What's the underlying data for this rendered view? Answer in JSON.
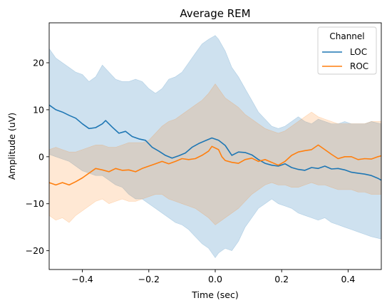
{
  "chart_data": {
    "type": "line",
    "title": "Average REM",
    "xlabel": "Time (sec)",
    "ylabel": "Amplitude (uV)",
    "xlim": [
      -0.5,
      0.5
    ],
    "ylim": [
      -24,
      28.5
    ],
    "x_ticks": [
      -0.4,
      -0.2,
      0.0,
      0.2,
      0.4
    ],
    "x_tick_labels": [
      "−0.4",
      "−0.2",
      "0.0",
      "0.2",
      "0.4"
    ],
    "y_ticks": [
      -20,
      -10,
      0,
      10,
      20
    ],
    "y_tick_labels": [
      "−20",
      "−10",
      "0",
      "10",
      "20"
    ],
    "grid": false,
    "legend": {
      "title": "Channel",
      "placement": "top-right"
    },
    "series": [
      {
        "name": "LOC",
        "color": "#1f77b4",
        "band_opacity": 0.22,
        "points": [
          [
            -0.5,
            11.0
          ],
          [
            -0.48,
            10.0
          ],
          [
            -0.46,
            9.5
          ],
          [
            -0.44,
            8.8
          ],
          [
            -0.42,
            8.2
          ],
          [
            -0.4,
            7.0
          ],
          [
            -0.38,
            6.0
          ],
          [
            -0.36,
            6.2
          ],
          [
            -0.34,
            7.0
          ],
          [
            -0.33,
            7.7
          ],
          [
            -0.31,
            6.3
          ],
          [
            -0.29,
            5.0
          ],
          [
            -0.27,
            5.4
          ],
          [
            -0.25,
            4.3
          ],
          [
            -0.23,
            3.8
          ],
          [
            -0.21,
            3.5
          ],
          [
            -0.19,
            2.0
          ],
          [
            -0.17,
            1.2
          ],
          [
            -0.15,
            0.3
          ],
          [
            -0.13,
            -0.3
          ],
          [
            -0.11,
            0.2
          ],
          [
            -0.09,
            0.8
          ],
          [
            -0.07,
            2.0
          ],
          [
            -0.05,
            2.8
          ],
          [
            -0.03,
            3.4
          ],
          [
            -0.01,
            4.0
          ],
          [
            0.01,
            3.5
          ],
          [
            0.03,
            2.4
          ],
          [
            0.05,
            0.3
          ],
          [
            0.07,
            1.0
          ],
          [
            0.09,
            0.9
          ],
          [
            0.11,
            0.4
          ],
          [
            0.13,
            -0.6
          ],
          [
            0.15,
            -1.4
          ],
          [
            0.17,
            -1.8
          ],
          [
            0.19,
            -2.0
          ],
          [
            0.21,
            -1.5
          ],
          [
            0.23,
            -2.3
          ],
          [
            0.25,
            -2.7
          ],
          [
            0.27,
            -2.9
          ],
          [
            0.29,
            -2.3
          ],
          [
            0.31,
            -2.5
          ],
          [
            0.33,
            -2.0
          ],
          [
            0.35,
            -2.6
          ],
          [
            0.37,
            -2.5
          ],
          [
            0.39,
            -2.8
          ],
          [
            0.41,
            -3.3
          ],
          [
            0.43,
            -3.5
          ],
          [
            0.45,
            -3.7
          ],
          [
            0.47,
            -4.0
          ],
          [
            0.49,
            -4.6
          ],
          [
            0.5,
            -5.0
          ]
        ],
        "band_upper": [
          [
            -0.5,
            23.0
          ],
          [
            -0.48,
            21.0
          ],
          [
            -0.46,
            20.0
          ],
          [
            -0.44,
            19.0
          ],
          [
            -0.42,
            18.0
          ],
          [
            -0.4,
            17.5
          ],
          [
            -0.38,
            16.0
          ],
          [
            -0.36,
            17.0
          ],
          [
            -0.34,
            19.5
          ],
          [
            -0.32,
            18.0
          ],
          [
            -0.3,
            16.5
          ],
          [
            -0.28,
            16.0
          ],
          [
            -0.26,
            16.0
          ],
          [
            -0.24,
            16.5
          ],
          [
            -0.22,
            16.0
          ],
          [
            -0.2,
            14.5
          ],
          [
            -0.18,
            13.5
          ],
          [
            -0.16,
            14.5
          ],
          [
            -0.14,
            16.5
          ],
          [
            -0.12,
            17.0
          ],
          [
            -0.1,
            18.0
          ],
          [
            -0.08,
            20.0
          ],
          [
            -0.06,
            22.0
          ],
          [
            -0.04,
            24.0
          ],
          [
            -0.02,
            25.0
          ],
          [
            0.0,
            25.8
          ],
          [
            0.01,
            25.0
          ],
          [
            0.03,
            22.5
          ],
          [
            0.05,
            19.0
          ],
          [
            0.07,
            17.0
          ],
          [
            0.09,
            14.5
          ],
          [
            0.11,
            12.0
          ],
          [
            0.13,
            9.5
          ],
          [
            0.15,
            8.0
          ],
          [
            0.17,
            6.5
          ],
          [
            0.19,
            6.0
          ],
          [
            0.21,
            6.5
          ],
          [
            0.23,
            7.5
          ],
          [
            0.25,
            8.5
          ],
          [
            0.27,
            7.5
          ],
          [
            0.29,
            7.0
          ],
          [
            0.31,
            8.0
          ],
          [
            0.33,
            7.5
          ],
          [
            0.35,
            7.0
          ],
          [
            0.37,
            7.0
          ],
          [
            0.39,
            7.5
          ],
          [
            0.41,
            7.0
          ],
          [
            0.43,
            7.0
          ],
          [
            0.45,
            7.0
          ],
          [
            0.47,
            7.5
          ],
          [
            0.5,
            7.0
          ]
        ],
        "band_lower": [
          [
            -0.5,
            0.5
          ],
          [
            -0.48,
            0.0
          ],
          [
            -0.46,
            -0.5
          ],
          [
            -0.44,
            -1.0
          ],
          [
            -0.42,
            -2.0
          ],
          [
            -0.4,
            -3.0
          ],
          [
            -0.38,
            -3.5
          ],
          [
            -0.36,
            -4.0
          ],
          [
            -0.34,
            -4.0
          ],
          [
            -0.32,
            -5.0
          ],
          [
            -0.3,
            -6.0
          ],
          [
            -0.28,
            -6.5
          ],
          [
            -0.26,
            -8.0
          ],
          [
            -0.24,
            -9.0
          ],
          [
            -0.22,
            -9.0
          ],
          [
            -0.2,
            -10.0
          ],
          [
            -0.18,
            -11.0
          ],
          [
            -0.16,
            -12.0
          ],
          [
            -0.14,
            -13.0
          ],
          [
            -0.12,
            -14.0
          ],
          [
            -0.1,
            -14.5
          ],
          [
            -0.08,
            -15.5
          ],
          [
            -0.06,
            -17.0
          ],
          [
            -0.04,
            -18.5
          ],
          [
            -0.02,
            -19.5
          ],
          [
            0.0,
            -21.5
          ],
          [
            0.01,
            -20.5
          ],
          [
            0.03,
            -19.5
          ],
          [
            0.05,
            -20.0
          ],
          [
            0.07,
            -18.0
          ],
          [
            0.09,
            -15.0
          ],
          [
            0.11,
            -13.0
          ],
          [
            0.13,
            -11.0
          ],
          [
            0.15,
            -10.0
          ],
          [
            0.17,
            -9.0
          ],
          [
            0.19,
            -10.0
          ],
          [
            0.21,
            -10.5
          ],
          [
            0.23,
            -11.0
          ],
          [
            0.25,
            -12.0
          ],
          [
            0.27,
            -12.5
          ],
          [
            0.29,
            -13.0
          ],
          [
            0.31,
            -13.5
          ],
          [
            0.33,
            -13.0
          ],
          [
            0.35,
            -14.0
          ],
          [
            0.37,
            -14.5
          ],
          [
            0.39,
            -15.0
          ],
          [
            0.41,
            -15.5
          ],
          [
            0.43,
            -16.0
          ],
          [
            0.45,
            -16.5
          ],
          [
            0.47,
            -17.0
          ],
          [
            0.5,
            -17.5
          ]
        ]
      },
      {
        "name": "ROC",
        "color": "#ff7f0e",
        "band_opacity": 0.18,
        "points": [
          [
            -0.5,
            -5.5
          ],
          [
            -0.48,
            -6.0
          ],
          [
            -0.46,
            -5.5
          ],
          [
            -0.44,
            -6.0
          ],
          [
            -0.42,
            -5.3
          ],
          [
            -0.4,
            -4.5
          ],
          [
            -0.38,
            -3.5
          ],
          [
            -0.36,
            -2.5
          ],
          [
            -0.34,
            -2.8
          ],
          [
            -0.32,
            -3.2
          ],
          [
            -0.3,
            -2.5
          ],
          [
            -0.28,
            -2.9
          ],
          [
            -0.26,
            -2.8
          ],
          [
            -0.24,
            -3.2
          ],
          [
            -0.22,
            -2.5
          ],
          [
            -0.2,
            -2.0
          ],
          [
            -0.18,
            -1.5
          ],
          [
            -0.16,
            -1.0
          ],
          [
            -0.14,
            -1.5
          ],
          [
            -0.12,
            -1.0
          ],
          [
            -0.1,
            -0.4
          ],
          [
            -0.08,
            -0.6
          ],
          [
            -0.06,
            -0.4
          ],
          [
            -0.04,
            0.3
          ],
          [
            -0.02,
            1.2
          ],
          [
            -0.01,
            2.2
          ],
          [
            0.01,
            1.5
          ],
          [
            0.02,
            0.0
          ],
          [
            0.03,
            -0.8
          ],
          [
            0.05,
            -1.2
          ],
          [
            0.07,
            -1.4
          ],
          [
            0.09,
            -0.6
          ],
          [
            0.11,
            -0.3
          ],
          [
            0.13,
            -1.0
          ],
          [
            0.15,
            -0.6
          ],
          [
            0.17,
            -1.2
          ],
          [
            0.19,
            -1.8
          ],
          [
            0.21,
            -1.0
          ],
          [
            0.23,
            0.3
          ],
          [
            0.25,
            1.0
          ],
          [
            0.27,
            1.3
          ],
          [
            0.29,
            1.5
          ],
          [
            0.31,
            2.5
          ],
          [
            0.33,
            1.5
          ],
          [
            0.35,
            0.5
          ],
          [
            0.37,
            -0.4
          ],
          [
            0.39,
            0.0
          ],
          [
            0.41,
            0.0
          ],
          [
            0.43,
            -0.6
          ],
          [
            0.45,
            -0.4
          ],
          [
            0.47,
            -0.5
          ],
          [
            0.49,
            0.0
          ],
          [
            0.5,
            0.2
          ]
        ],
        "band_upper": [
          [
            -0.5,
            1.5
          ],
          [
            -0.48,
            2.0
          ],
          [
            -0.46,
            1.5
          ],
          [
            -0.44,
            1.0
          ],
          [
            -0.42,
            1.0
          ],
          [
            -0.4,
            1.5
          ],
          [
            -0.38,
            2.0
          ],
          [
            -0.36,
            2.5
          ],
          [
            -0.34,
            2.5
          ],
          [
            -0.32,
            2.0
          ],
          [
            -0.3,
            2.0
          ],
          [
            -0.28,
            2.5
          ],
          [
            -0.26,
            3.0
          ],
          [
            -0.24,
            3.0
          ],
          [
            -0.22,
            3.0
          ],
          [
            -0.2,
            3.5
          ],
          [
            -0.18,
            5.0
          ],
          [
            -0.16,
            6.5
          ],
          [
            -0.14,
            7.5
          ],
          [
            -0.12,
            8.0
          ],
          [
            -0.1,
            9.0
          ],
          [
            -0.08,
            10.0
          ],
          [
            -0.06,
            11.0
          ],
          [
            -0.04,
            12.0
          ],
          [
            -0.02,
            13.5
          ],
          [
            0.0,
            15.5
          ],
          [
            0.01,
            14.5
          ],
          [
            0.03,
            12.5
          ],
          [
            0.05,
            11.5
          ],
          [
            0.07,
            10.5
          ],
          [
            0.09,
            9.0
          ],
          [
            0.11,
            8.0
          ],
          [
            0.13,
            7.0
          ],
          [
            0.15,
            6.0
          ],
          [
            0.17,
            5.5
          ],
          [
            0.19,
            5.0
          ],
          [
            0.21,
            5.5
          ],
          [
            0.23,
            6.5
          ],
          [
            0.25,
            7.5
          ],
          [
            0.27,
            8.5
          ],
          [
            0.29,
            9.5
          ],
          [
            0.31,
            8.5
          ],
          [
            0.33,
            8.0
          ],
          [
            0.35,
            7.5
          ],
          [
            0.37,
            7.0
          ],
          [
            0.39,
            7.0
          ],
          [
            0.41,
            7.0
          ],
          [
            0.43,
            7.0
          ],
          [
            0.45,
            7.0
          ],
          [
            0.47,
            7.5
          ],
          [
            0.5,
            7.5
          ]
        ],
        "band_lower": [
          [
            -0.5,
            -12.5
          ],
          [
            -0.48,
            -13.5
          ],
          [
            -0.46,
            -13.0
          ],
          [
            -0.44,
            -14.0
          ],
          [
            -0.42,
            -12.5
          ],
          [
            -0.4,
            -11.5
          ],
          [
            -0.38,
            -10.5
          ],
          [
            -0.36,
            -9.5
          ],
          [
            -0.34,
            -9.0
          ],
          [
            -0.32,
            -10.0
          ],
          [
            -0.3,
            -9.5
          ],
          [
            -0.28,
            -9.0
          ],
          [
            -0.26,
            -9.5
          ],
          [
            -0.24,
            -9.5
          ],
          [
            -0.22,
            -9.0
          ],
          [
            -0.2,
            -8.5
          ],
          [
            -0.18,
            -8.0
          ],
          [
            -0.16,
            -8.0
          ],
          [
            -0.14,
            -9.0
          ],
          [
            -0.12,
            -9.5
          ],
          [
            -0.1,
            -10.0
          ],
          [
            -0.08,
            -10.5
          ],
          [
            -0.06,
            -11.0
          ],
          [
            -0.04,
            -12.0
          ],
          [
            -0.02,
            -13.0
          ],
          [
            0.0,
            -14.5
          ],
          [
            0.01,
            -14.0
          ],
          [
            0.03,
            -13.0
          ],
          [
            0.05,
            -12.0
          ],
          [
            0.07,
            -11.0
          ],
          [
            0.09,
            -9.5
          ],
          [
            0.11,
            -8.0
          ],
          [
            0.13,
            -7.0
          ],
          [
            0.15,
            -6.0
          ],
          [
            0.17,
            -5.5
          ],
          [
            0.19,
            -6.0
          ],
          [
            0.21,
            -6.0
          ],
          [
            0.23,
            -6.5
          ],
          [
            0.25,
            -6.5
          ],
          [
            0.27,
            -6.0
          ],
          [
            0.29,
            -5.5
          ],
          [
            0.31,
            -6.0
          ],
          [
            0.33,
            -6.0
          ],
          [
            0.35,
            -6.5
          ],
          [
            0.37,
            -7.0
          ],
          [
            0.39,
            -7.0
          ],
          [
            0.41,
            -7.0
          ],
          [
            0.43,
            -7.5
          ],
          [
            0.45,
            -7.5
          ],
          [
            0.47,
            -8.0
          ],
          [
            0.5,
            -8.0
          ]
        ]
      }
    ]
  }
}
